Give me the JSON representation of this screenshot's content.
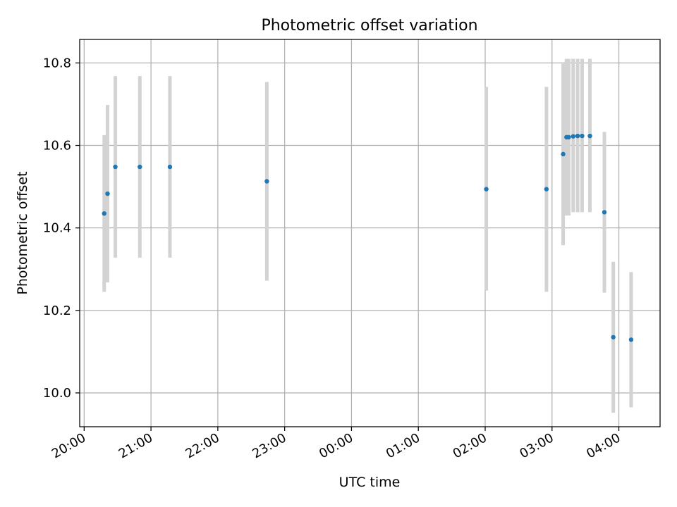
{
  "chart_data": {
    "type": "scatter",
    "title": "Photometric offset variation",
    "xlabel": "UTC time",
    "ylabel": "Photometric offset",
    "x_tick_labels": [
      "20:00",
      "21:00",
      "22:00",
      "23:00",
      "00:00",
      "01:00",
      "02:00",
      "03:00",
      "04:00"
    ],
    "y_tick_labels": [
      "10.0",
      "10.2",
      "10.4",
      "10.6",
      "10.8"
    ],
    "y_ticks": [
      10.0,
      10.2,
      10.4,
      10.6,
      10.8
    ],
    "xlim": [
      "19:56",
      "04:37"
    ],
    "ylim": [
      9.918,
      10.857
    ],
    "grid": true,
    "colors": {
      "point": "#1f77b4",
      "errorbar": "#d3d3d3",
      "grid": "#b0b0b0"
    },
    "series": [
      {
        "x": [
          "20:18",
          "20:21",
          "20:28",
          "20:50",
          "21:17",
          "22:44",
          "02:01",
          "02:55",
          "03:10",
          "03:13",
          "03:15",
          "03:19",
          "03:23",
          "03:27",
          "03:34",
          "03:47",
          "03:55",
          "04:11"
        ],
        "y": [
          10.435,
          10.483,
          10.548,
          10.548,
          10.548,
          10.513,
          10.494,
          10.494,
          10.579,
          10.62,
          10.62,
          10.622,
          10.623,
          10.623,
          10.623,
          10.438,
          10.135,
          10.129
        ],
        "yerr_low": [
          10.245,
          10.268,
          10.328,
          10.328,
          10.328,
          10.272,
          10.248,
          10.245,
          10.358,
          10.43,
          10.43,
          10.438,
          10.438,
          10.438,
          10.438,
          10.243,
          9.952,
          9.965
        ],
        "yerr_high": [
          10.625,
          10.698,
          10.768,
          10.768,
          10.768,
          10.754,
          10.742,
          10.742,
          10.798,
          10.81,
          10.81,
          10.81,
          10.81,
          10.81,
          10.81,
          10.633,
          10.318,
          10.293
        ]
      }
    ]
  }
}
